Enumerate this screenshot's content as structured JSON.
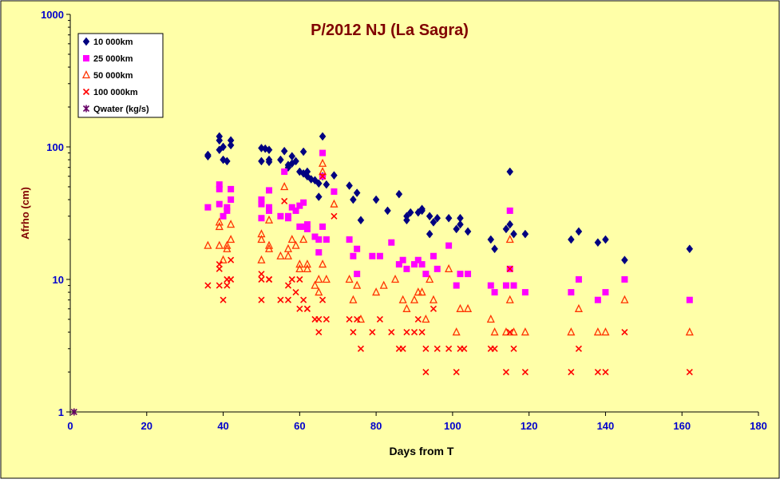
{
  "chart_data": {
    "type": "scatter",
    "title": "P/2012 NJ (La Sagra)",
    "xlabel": "Days from T",
    "ylabel": "Afrho (cm)",
    "xlim": [
      0,
      180
    ],
    "ylim": [
      1,
      1000
    ],
    "y_scale": "log",
    "x_ticks": [
      "0",
      "20",
      "40",
      "60",
      "80",
      "100",
      "120",
      "140",
      "160",
      "180"
    ],
    "y_ticks": [
      "1",
      "10",
      "100",
      "1000"
    ],
    "grid": false,
    "legend_position": "top-left",
    "colors": {
      "background": "#ffffa8",
      "axis_text": "#0000cc",
      "title": "#800000",
      "axis_label": "#800000",
      "xlabel": "#000000"
    },
    "series": [
      {
        "name": "10 000km",
        "marker": "diamond",
        "color": "#000080",
        "points": [
          [
            36,
            87
          ],
          [
            36,
            85
          ],
          [
            39,
            120
          ],
          [
            39,
            112
          ],
          [
            39,
            95
          ],
          [
            40,
            100
          ],
          [
            40,
            80
          ],
          [
            41,
            78
          ],
          [
            42,
            112
          ],
          [
            42,
            103
          ],
          [
            50,
            98
          ],
          [
            50,
            78
          ],
          [
            51,
            97
          ],
          [
            52,
            95
          ],
          [
            52,
            80
          ],
          [
            52,
            77
          ],
          [
            55,
            80
          ],
          [
            56,
            93
          ],
          [
            57,
            70
          ],
          [
            57,
            73
          ],
          [
            58,
            85
          ],
          [
            58,
            75
          ],
          [
            59,
            78
          ],
          [
            60,
            65
          ],
          [
            61,
            63
          ],
          [
            61,
            92
          ],
          [
            62,
            60
          ],
          [
            62,
            65
          ],
          [
            63,
            57
          ],
          [
            64,
            56
          ],
          [
            65,
            53
          ],
          [
            65,
            42
          ],
          [
            66,
            120
          ],
          [
            66,
            60
          ],
          [
            67,
            52
          ],
          [
            69,
            61
          ],
          [
            73,
            51
          ],
          [
            74,
            40
          ],
          [
            75,
            45
          ],
          [
            76,
            28
          ],
          [
            80,
            40
          ],
          [
            83,
            33
          ],
          [
            86,
            44
          ],
          [
            88,
            30
          ],
          [
            88,
            28
          ],
          [
            89,
            32
          ],
          [
            91,
            32
          ],
          [
            92,
            34
          ],
          [
            92,
            33
          ],
          [
            94,
            22
          ],
          [
            94,
            30
          ],
          [
            95,
            27
          ],
          [
            96,
            29
          ],
          [
            99,
            29
          ],
          [
            101,
            24
          ],
          [
            102,
            29
          ],
          [
            102,
            26
          ],
          [
            104,
            23
          ],
          [
            110,
            20
          ],
          [
            111,
            17
          ],
          [
            114,
            24
          ],
          [
            115,
            65
          ],
          [
            115,
            26
          ],
          [
            116,
            22
          ],
          [
            119,
            22
          ],
          [
            131,
            20
          ],
          [
            133,
            23
          ],
          [
            138,
            19
          ],
          [
            140,
            20
          ],
          [
            145,
            14
          ],
          [
            162,
            17
          ]
        ]
      },
      {
        "name": "25 000km",
        "marker": "square",
        "color": "#ff00ff",
        "points": [
          [
            36,
            35
          ],
          [
            39,
            52
          ],
          [
            39,
            48
          ],
          [
            39,
            37
          ],
          [
            40,
            30
          ],
          [
            41,
            35
          ],
          [
            41,
            33
          ],
          [
            42,
            48
          ],
          [
            42,
            40
          ],
          [
            50,
            40
          ],
          [
            50,
            37
          ],
          [
            50,
            29
          ],
          [
            52,
            47
          ],
          [
            52,
            35
          ],
          [
            52,
            33
          ],
          [
            55,
            30
          ],
          [
            56,
            65
          ],
          [
            57,
            29
          ],
          [
            57,
            30
          ],
          [
            58,
            35
          ],
          [
            59,
            33
          ],
          [
            60,
            25
          ],
          [
            60,
            36
          ],
          [
            61,
            38
          ],
          [
            61,
            25
          ],
          [
            62,
            24
          ],
          [
            62,
            26
          ],
          [
            64,
            21
          ],
          [
            65,
            20
          ],
          [
            65,
            16
          ],
          [
            66,
            25
          ],
          [
            66,
            90
          ],
          [
            66,
            60
          ],
          [
            67,
            20
          ],
          [
            69,
            46
          ],
          [
            73,
            20
          ],
          [
            74,
            15
          ],
          [
            75,
            17
          ],
          [
            75,
            11
          ],
          [
            79,
            15
          ],
          [
            81,
            15
          ],
          [
            84,
            19
          ],
          [
            86,
            13
          ],
          [
            87,
            14
          ],
          [
            88,
            12
          ],
          [
            90,
            13
          ],
          [
            91,
            14
          ],
          [
            92,
            13
          ],
          [
            93,
            11
          ],
          [
            95,
            15
          ],
          [
            96,
            12
          ],
          [
            99,
            18
          ],
          [
            101,
            9
          ],
          [
            102,
            11
          ],
          [
            104,
            11
          ],
          [
            110,
            9
          ],
          [
            111,
            8
          ],
          [
            114,
            9
          ],
          [
            115,
            12
          ],
          [
            115,
            33
          ],
          [
            116,
            9
          ],
          [
            119,
            8
          ],
          [
            131,
            8
          ],
          [
            133,
            10
          ],
          [
            138,
            7
          ],
          [
            140,
            8
          ],
          [
            145,
            10
          ],
          [
            162,
            7
          ]
        ]
      },
      {
        "name": "50 000km",
        "marker": "triangle",
        "color": "#ff3300",
        "points": [
          [
            36,
            18
          ],
          [
            39,
            27
          ],
          [
            39,
            25
          ],
          [
            39,
            18
          ],
          [
            40,
            14
          ],
          [
            41,
            18
          ],
          [
            41,
            17
          ],
          [
            42,
            20
          ],
          [
            42,
            26
          ],
          [
            50,
            22
          ],
          [
            50,
            20
          ],
          [
            50,
            14
          ],
          [
            52,
            18
          ],
          [
            52,
            28
          ],
          [
            52,
            17
          ],
          [
            55,
            15
          ],
          [
            56,
            50
          ],
          [
            57,
            15
          ],
          [
            57,
            17
          ],
          [
            58,
            20
          ],
          [
            59,
            18
          ],
          [
            60,
            13
          ],
          [
            60,
            12
          ],
          [
            61,
            20
          ],
          [
            62,
            13
          ],
          [
            62,
            12
          ],
          [
            64,
            9
          ],
          [
            65,
            10
          ],
          [
            65,
            8
          ],
          [
            66,
            13
          ],
          [
            66,
            75
          ],
          [
            66,
            65
          ],
          [
            67,
            10
          ],
          [
            69,
            37
          ],
          [
            73,
            10
          ],
          [
            74,
            7
          ],
          [
            75,
            9
          ],
          [
            76,
            5
          ],
          [
            80,
            8
          ],
          [
            82,
            9
          ],
          [
            85,
            10
          ],
          [
            87,
            7
          ],
          [
            88,
            6
          ],
          [
            90,
            7
          ],
          [
            91,
            8
          ],
          [
            92,
            8
          ],
          [
            93,
            5
          ],
          [
            94,
            10
          ],
          [
            95,
            7
          ],
          [
            99,
            12
          ],
          [
            101,
            4
          ],
          [
            102,
            6
          ],
          [
            104,
            6
          ],
          [
            110,
            5
          ],
          [
            111,
            4
          ],
          [
            114,
            4
          ],
          [
            115,
            20
          ],
          [
            115,
            7
          ],
          [
            116,
            4
          ],
          [
            119,
            4
          ],
          [
            131,
            4
          ],
          [
            133,
            6
          ],
          [
            138,
            4
          ],
          [
            140,
            4
          ],
          [
            145,
            7
          ],
          [
            162,
            4
          ]
        ]
      },
      {
        "name": "100 000km",
        "marker": "x",
        "color": "#ff0000",
        "points": [
          [
            36,
            9
          ],
          [
            39,
            13
          ],
          [
            39,
            12
          ],
          [
            39,
            9
          ],
          [
            40,
            7
          ],
          [
            41,
            9
          ],
          [
            41,
            10
          ],
          [
            42,
            10
          ],
          [
            42,
            14
          ],
          [
            50,
            11
          ],
          [
            50,
            10
          ],
          [
            50,
            7
          ],
          [
            52,
            10
          ],
          [
            52,
            10
          ],
          [
            55,
            7
          ],
          [
            56,
            39
          ],
          [
            57,
            9
          ],
          [
            57,
            7
          ],
          [
            58,
            10
          ],
          [
            59,
            8
          ],
          [
            60,
            6
          ],
          [
            60,
            10
          ],
          [
            61,
            7
          ],
          [
            62,
            6
          ],
          [
            62,
            6
          ],
          [
            64,
            5
          ],
          [
            65,
            4
          ],
          [
            65,
            5
          ],
          [
            66,
            7
          ],
          [
            66,
            60
          ],
          [
            67,
            5
          ],
          [
            69,
            30
          ],
          [
            73,
            5
          ],
          [
            74,
            4
          ],
          [
            75,
            5
          ],
          [
            76,
            3
          ],
          [
            79,
            4
          ],
          [
            81,
            5
          ],
          [
            84,
            4
          ],
          [
            86,
            3
          ],
          [
            87,
            3
          ],
          [
            88,
            4
          ],
          [
            90,
            4
          ],
          [
            91,
            5
          ],
          [
            92,
            4
          ],
          [
            93,
            2
          ],
          [
            93,
            3
          ],
          [
            95,
            6
          ],
          [
            96,
            3
          ],
          [
            99,
            3
          ],
          [
            101,
            2
          ],
          [
            102,
            3
          ],
          [
            103,
            3
          ],
          [
            110,
            3
          ],
          [
            111,
            3
          ],
          [
            114,
            2
          ],
          [
            115,
            12
          ],
          [
            115,
            4
          ],
          [
            116,
            3
          ],
          [
            119,
            2
          ],
          [
            131,
            2
          ],
          [
            133,
            3
          ],
          [
            138,
            2
          ],
          [
            140,
            2
          ],
          [
            145,
            4
          ],
          [
            162,
            2
          ]
        ]
      },
      {
        "name": "Qwater (kg/s)",
        "marker": "star",
        "color": "#660066",
        "points": [
          [
            1,
            1
          ]
        ]
      }
    ]
  }
}
